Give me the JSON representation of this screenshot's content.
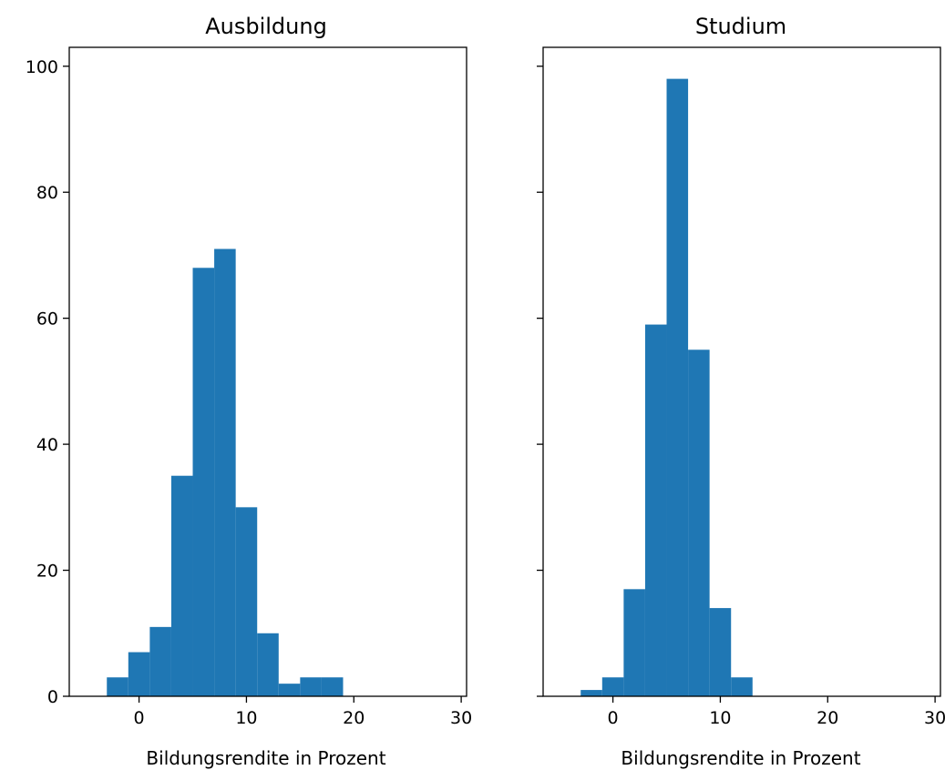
{
  "chart_data": [
    {
      "type": "histogram",
      "title": "Ausbildung",
      "xlabel": "Bildungsrendite in Prozent",
      "ylabel": "",
      "xlim": [
        -6.5,
        30.5
      ],
      "ylim": [
        0,
        103
      ],
      "xticks": [
        0,
        10,
        20,
        30
      ],
      "yticks": [
        0,
        20,
        40,
        60,
        80,
        100
      ],
      "bin_edges": [
        -3,
        -1,
        1,
        3,
        5,
        7,
        9,
        11,
        13,
        15,
        17,
        19
      ],
      "values": [
        3,
        7,
        11,
        35,
        68,
        71,
        30,
        10,
        2,
        3,
        3
      ],
      "color": "#1f77b4",
      "grid": false
    },
    {
      "type": "histogram",
      "title": "Studium",
      "xlabel": "Bildungsrendite in Prozent",
      "ylabel": "",
      "xlim": [
        -6.5,
        30.5
      ],
      "ylim": [
        0,
        103
      ],
      "xticks": [
        0,
        10,
        20,
        30
      ],
      "yticks": [
        0,
        20,
        40,
        60,
        80,
        100
      ],
      "show_ytick_labels": false,
      "bin_edges": [
        -3,
        -1,
        1,
        3,
        5,
        7,
        9,
        11,
        13
      ],
      "values": [
        1,
        3,
        17,
        59,
        98,
        55,
        14,
        3
      ],
      "color": "#1f77b4",
      "grid": false
    }
  ]
}
